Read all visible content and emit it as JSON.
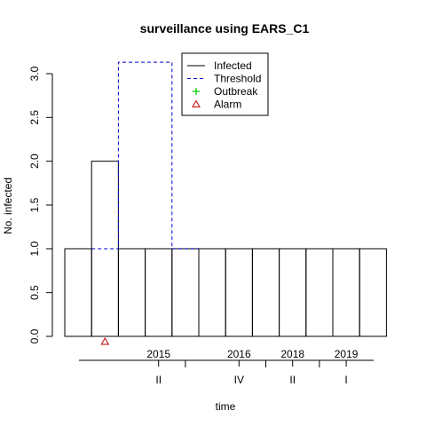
{
  "chart_data": {
    "type": "bar",
    "title": "surveillance using EARS_C1",
    "xlabel": "time",
    "ylabel": "No. infected",
    "ylim": [
      0,
      3.0
    ],
    "yticks": [
      "0.0",
      "0.5",
      "1.0",
      "1.5",
      "2.0",
      "2.5",
      "3.0"
    ],
    "series": [
      {
        "name": "Infected",
        "values": [
          1,
          2,
          1,
          1,
          1,
          1,
          1,
          1,
          1,
          1,
          1,
          1
        ]
      },
      {
        "name": "Threshold",
        "values": [
          null,
          1.0,
          3.13,
          3.13,
          1.0,
          null,
          null,
          null,
          null,
          null,
          null,
          null
        ]
      }
    ],
    "alarms": [
      1
    ],
    "outbreaks": [],
    "year_labels": [
      {
        "label": "2015",
        "x": 3.5
      },
      {
        "label": "2016",
        "x": 6.5
      },
      {
        "label": "2018",
        "x": 8.5
      },
      {
        "label": "2019",
        "x": 10.5
      }
    ],
    "quarter_labels": [
      {
        "label": "II",
        "x": 3.5
      },
      {
        "label": "IV",
        "x": 6.5
      },
      {
        "label": "II",
        "x": 8.5
      },
      {
        "label": "I",
        "x": 10.5
      }
    ],
    "minor_ticks": [
      4.5,
      7.5,
      9.5
    ],
    "legend": {
      "position": "top-center",
      "entries": [
        {
          "label": "Infected",
          "symbol": "line",
          "color": "#000000"
        },
        {
          "label": "Threshold",
          "symbol": "dashed",
          "color": "#0000cc"
        },
        {
          "label": "Outbreak",
          "symbol": "plus",
          "color": "#00cc00"
        },
        {
          "label": "Alarm",
          "symbol": "triangle",
          "color": "#cc0000"
        }
      ]
    },
    "colors": {
      "infected": "#000000",
      "threshold": "#0000cc",
      "outbreak": "#00cc00",
      "alarm": "#cc0000"
    }
  }
}
